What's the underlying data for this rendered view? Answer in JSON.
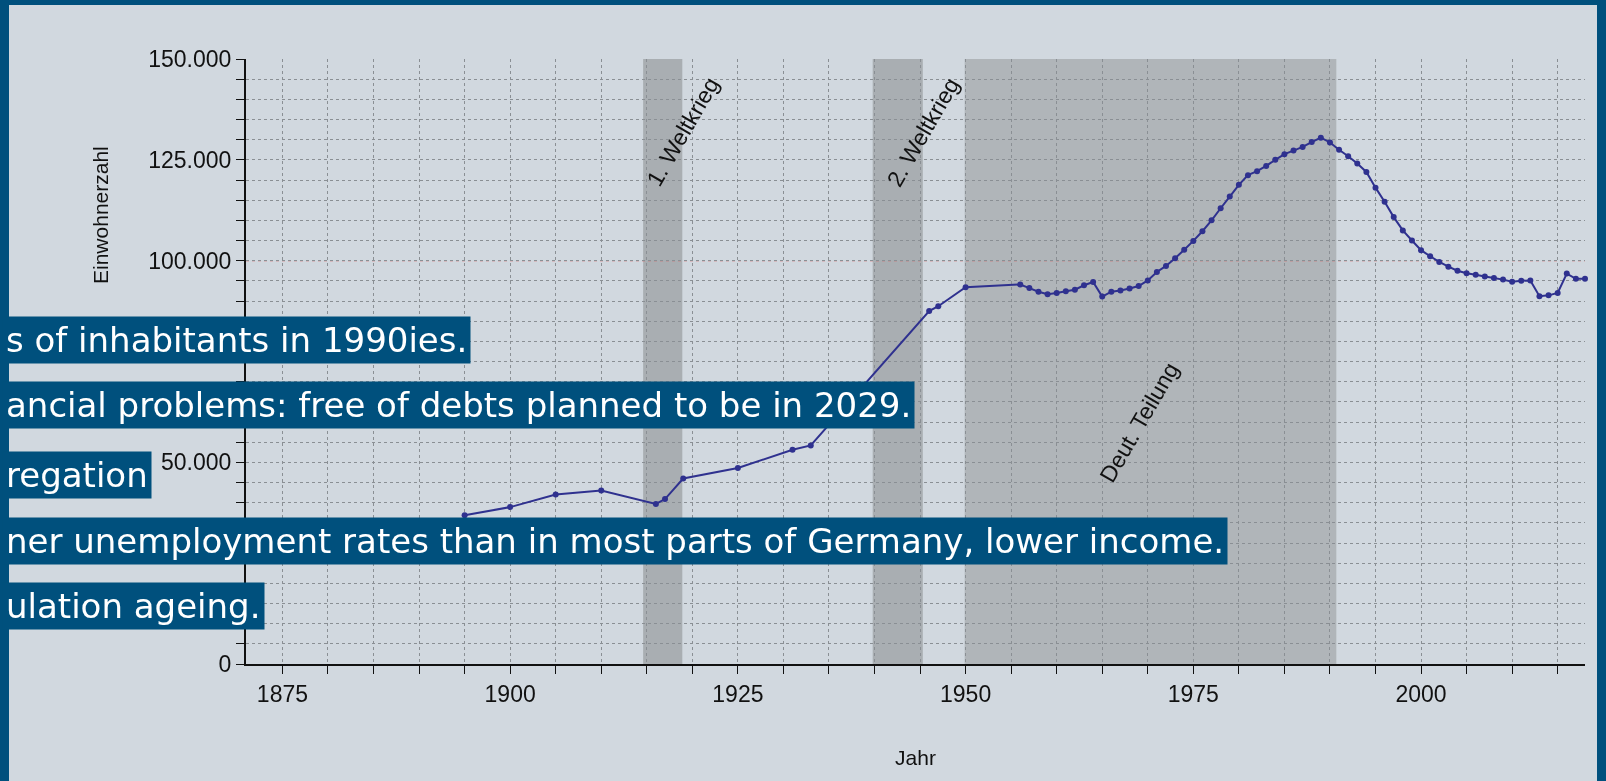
{
  "chart_data": {
    "type": "line",
    "xlabel": "Jahr",
    "ylabel": "Einwohnerzahl",
    "x": [
      1895,
      1900,
      1905,
      1910,
      1916,
      1917,
      1919,
      1925,
      1931,
      1933,
      1946,
      1947,
      1950,
      1956,
      1957,
      1958,
      1959,
      1960,
      1961,
      1962,
      1963,
      1964,
      1965,
      1966,
      1967,
      1968,
      1969,
      1970,
      1971,
      1972,
      1973,
      1974,
      1975,
      1976,
      1977,
      1978,
      1979,
      1980,
      1981,
      1982,
      1983,
      1984,
      1985,
      1986,
      1987,
      1988,
      1989,
      1990,
      1991,
      1992,
      1993,
      1994,
      1995,
      1996,
      1997,
      1998,
      1999,
      2000,
      2001,
      2002,
      2003,
      2004,
      2005,
      2006,
      2007,
      2008,
      2009,
      2010,
      2011,
      2012,
      2013,
      2014,
      2015,
      2016,
      2017,
      2018
    ],
    "series": [
      {
        "color": "#2f318f",
        "values": [
          36900,
          38900,
          42000,
          43000,
          39700,
          40900,
          46000,
          48600,
          53100,
          54200,
          87500,
          88700,
          93400,
          94100,
          93200,
          92300,
          91700,
          92000,
          92400,
          92800,
          93900,
          94700,
          91100,
          92300,
          92600,
          93100,
          93700,
          95100,
          97200,
          98700,
          100600,
          102700,
          104900,
          107300,
          110000,
          113000,
          115900,
          118800,
          121200,
          122200,
          123500,
          125000,
          126400,
          127300,
          128200,
          129400,
          130500,
          129300,
          127500,
          125900,
          124100,
          122000,
          118100,
          114600,
          110800,
          107500,
          105000,
          102600,
          101100,
          99700,
          98500,
          97500,
          96900,
          96500,
          96100,
          95700,
          95300,
          94800,
          95000,
          95100,
          91200,
          91400,
          92000,
          96800,
          95500,
          95500
        ]
      }
    ],
    "xlim": [
      1871,
      2018
    ],
    "ylim": [
      0,
      150000
    ],
    "xticks": [
      {
        "value": 1875,
        "label": "1875"
      },
      {
        "value": 1880,
        "label": null
      },
      {
        "value": 1885,
        "label": null
      },
      {
        "value": 1890,
        "label": null
      },
      {
        "value": 1895,
        "label": null
      },
      {
        "value": 1900,
        "label": "1900"
      },
      {
        "value": 1905,
        "label": null
      },
      {
        "value": 1910,
        "label": null
      },
      {
        "value": 1915,
        "label": null
      },
      {
        "value": 1920,
        "label": null
      },
      {
        "value": 1925,
        "label": "1925"
      },
      {
        "value": 1930,
        "label": null
      },
      {
        "value": 1935,
        "label": null
      },
      {
        "value": 1940,
        "label": null
      },
      {
        "value": 1945,
        "label": null
      },
      {
        "value": 1950,
        "label": "1950"
      },
      {
        "value": 1955,
        "label": null
      },
      {
        "value": 1960,
        "label": null
      },
      {
        "value": 1965,
        "label": null
      },
      {
        "value": 1970,
        "label": null
      },
      {
        "value": 1975,
        "label": "1975"
      },
      {
        "value": 1980,
        "label": null
      },
      {
        "value": 1985,
        "label": null
      },
      {
        "value": 1990,
        "label": null
      },
      {
        "value": 1995,
        "label": null
      },
      {
        "value": 2000,
        "label": "2000"
      },
      {
        "value": 2005,
        "label": null
      },
      {
        "value": 2010,
        "label": null
      },
      {
        "value": 2015,
        "label": null
      }
    ],
    "yticks": [
      0,
      {
        "value": 5000,
        "label": null
      },
      {
        "value": 10000,
        "label": null
      },
      {
        "value": 15000,
        "label": null
      },
      {
        "value": 20000,
        "label": null
      },
      {
        "value": 25000,
        "label": null
      },
      {
        "value": 30000,
        "label": null
      },
      {
        "value": 35000,
        "label": null
      },
      {
        "value": 40000,
        "label": null
      },
      {
        "value": 45000,
        "label": null
      },
      {
        "value": 50000,
        "label": "50.000"
      },
      {
        "value": 55000,
        "label": null
      },
      {
        "value": 60000,
        "label": null
      },
      {
        "value": 65000,
        "label": null
      },
      {
        "value": 70000,
        "label": null
      },
      {
        "value": 75000,
        "label": null
      },
      {
        "value": 80000,
        "label": null
      },
      {
        "value": 85000,
        "label": null
      },
      {
        "value": 90000,
        "label": null
      },
      {
        "value": 95000,
        "label": null
      },
      {
        "value": 100000,
        "label": "100.000"
      },
      {
        "value": 105000,
        "label": null
      },
      {
        "value": 110000,
        "label": null
      },
      {
        "value": 115000,
        "label": null
      },
      {
        "value": 120000,
        "label": null
      },
      {
        "value": 125000,
        "label": "125.000"
      },
      {
        "value": 130000,
        "label": null
      },
      {
        "value": 135000,
        "label": null
      },
      {
        "value": 140000,
        "label": null
      },
      {
        "value": 145000,
        "label": null
      },
      {
        "value": 150000,
        "label": "150.000"
      }
    ],
    "grid": true,
    "marker": "circle",
    "line_style": "solid",
    "ref_lines": [
      {
        "axis": "y",
        "value": 100000,
        "color": "#e06060",
        "line_style": "dotted"
      }
    ],
    "bands": [
      {
        "axis": "x",
        "from": 1914.6,
        "to": 1918.9,
        "label": "1. Weltkrieg",
        "color": "#a9aeb2"
      },
      {
        "axis": "x",
        "from": 1939.8,
        "to": 1945.3,
        "label": "2. Weltkrieg",
        "color": "#a9aeb2"
      },
      {
        "axis": "x",
        "from": 1949.9,
        "to": 1990.7,
        "label": "Deut. Teilung",
        "color": "#b0b5b9"
      }
    ],
    "annotations": [
      "s of inhabitants in 1990ies.",
      "ancial problems: free of debts planned to be in 2029.",
      "regation",
      "ner unemployment rates than in most parts of Germany, lower income.",
      "ulation ageing."
    ]
  }
}
